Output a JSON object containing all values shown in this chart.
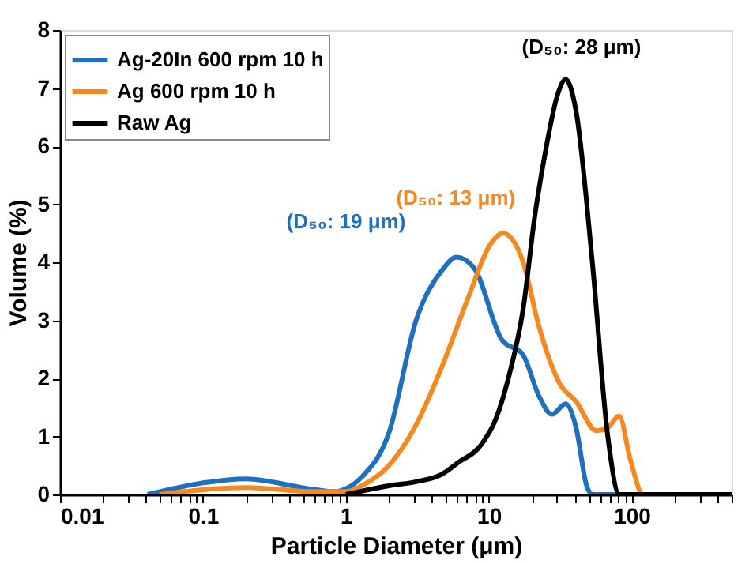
{
  "chart_data": {
    "type": "line",
    "xlabel": "Particle Diameter (μm)",
    "ylabel": "Volume (%)",
    "log": "x",
    "xlim": [
      0.01,
      500
    ],
    "ylim": [
      0,
      8
    ],
    "xticks": [
      0.01,
      {
        "value": 0.02,
        "label": null
      },
      {
        "value": 0.03,
        "label": null
      },
      {
        "value": 0.04,
        "label": null
      },
      {
        "value": 0.05,
        "label": null
      },
      {
        "value": 0.06,
        "label": null
      },
      {
        "value": 0.07,
        "label": null
      },
      {
        "value": 0.08,
        "label": null
      },
      {
        "value": 0.09,
        "label": null
      },
      0.1,
      {
        "value": 0.2,
        "label": null
      },
      {
        "value": 0.3,
        "label": null
      },
      {
        "value": 0.4,
        "label": null
      },
      {
        "value": 0.5,
        "label": null
      },
      {
        "value": 0.6,
        "label": null
      },
      {
        "value": 0.7,
        "label": null
      },
      {
        "value": 0.8,
        "label": null
      },
      {
        "value": 0.9,
        "label": null
      },
      1,
      {
        "value": 2,
        "label": null
      },
      {
        "value": 3,
        "label": null
      },
      {
        "value": 4,
        "label": null
      },
      {
        "value": 5,
        "label": null
      },
      {
        "value": 6,
        "label": null
      },
      {
        "value": 7,
        "label": null
      },
      {
        "value": 8,
        "label": null
      },
      {
        "value": 9,
        "label": null
      },
      10,
      {
        "value": 20,
        "label": null
      },
      {
        "value": 30,
        "label": null
      },
      {
        "value": 40,
        "label": null
      },
      {
        "value": 50,
        "label": null
      },
      {
        "value": 60,
        "label": null
      },
      {
        "value": 70,
        "label": null
      },
      {
        "value": 80,
        "label": null
      },
      {
        "value": 90,
        "label": null
      },
      100,
      {
        "value": 200,
        "label": null
      },
      {
        "value": 300,
        "label": null
      },
      {
        "value": 400,
        "label": null
      },
      {
        "value": 500,
        "label": null
      }
    ],
    "yticks": [
      0,
      1,
      2,
      3,
      4,
      5,
      6,
      7,
      8
    ],
    "grid": false,
    "legend": "top left",
    "marker": "none",
    "line_style": "solid",
    "series": [
      {
        "name": "Ag-20In 600 rpm 10 h",
        "color": "#1f6fbf",
        "x": [
          0.041,
          0.1,
          0.2,
          0.55,
          0.83,
          1,
          1.29,
          2,
          3.1,
          4.7,
          5.96,
          7.9,
          12.3,
          17.4,
          22.4,
          27.6,
          34.5,
          40.8,
          48.5,
          53,
          500
        ],
        "values": [
          0,
          0.2,
          0.27,
          0.1,
          0.05,
          0.1,
          0.3,
          1.06,
          3.0,
          3.86,
          4.09,
          3.9,
          2.67,
          2.4,
          1.7,
          1.38,
          1.56,
          1.15,
          0.14,
          0,
          0
        ]
      },
      {
        "name": "Ag 600 rpm 10 h",
        "color": "#f5881f",
        "x": [
          0.05,
          0.2,
          0.6,
          1,
          1.29,
          2,
          3.1,
          4.7,
          7.2,
          10.2,
          12.6,
          17.4,
          22.4,
          31.5,
          40.8,
          56.6,
          68,
          81.7,
          97.8,
          120,
          500
        ],
        "values": [
          0,
          0.12,
          0.05,
          0.05,
          0.15,
          0.5,
          1.2,
          2.2,
          3.4,
          4.3,
          4.5,
          4.0,
          2.9,
          1.9,
          1.6,
          1.1,
          1.15,
          1.35,
          0.6,
          0,
          0
        ]
      },
      {
        "name": "Raw Ag",
        "color": "#000000",
        "x": [
          1,
          2,
          3.1,
          4.7,
          6.1,
          8.8,
          11.2,
          13.7,
          17.4,
          21,
          25.3,
          30.4,
          34.5,
          40.8,
          53,
          68,
          82,
          500
        ],
        "values": [
          0,
          0.15,
          0.22,
          0.35,
          0.55,
          0.85,
          1.3,
          2.0,
          3.2,
          4.8,
          6.0,
          6.9,
          7.15,
          6.6,
          4.0,
          1.0,
          0,
          0
        ]
      }
    ],
    "annotations": [
      "(D₅₀: 19 μm)",
      "(D₅₀: 13 μm)",
      "(D₅₀: 28 μm)"
    ]
  }
}
